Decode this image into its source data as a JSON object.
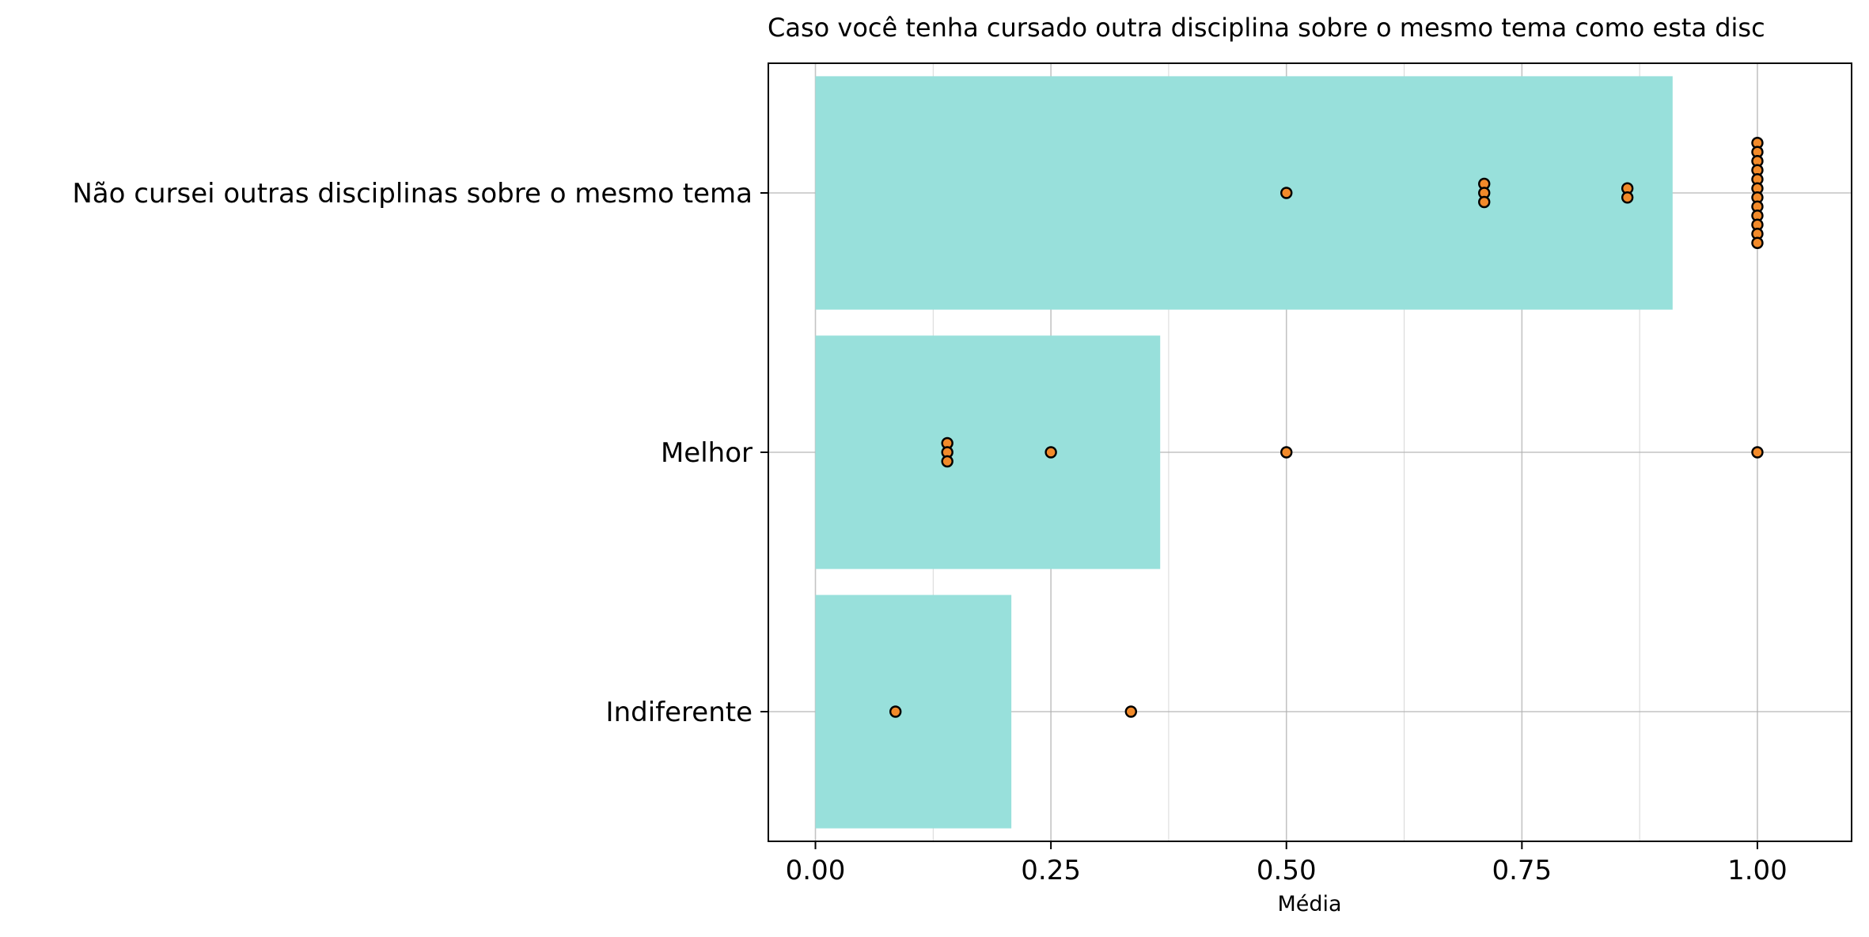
{
  "chart_data": {
    "type": "bar",
    "orientation": "horizontal",
    "title": "Caso você tenha cursado outra disciplina sobre o mesmo tema  como esta disc",
    "xlabel": "Média",
    "ylabel": "",
    "xlim": [
      -0.05,
      1.1
    ],
    "x_ticks": [
      0.0,
      0.25,
      0.5,
      0.75,
      1.0
    ],
    "x_tick_labels": [
      "0.00",
      "0.25",
      "0.50",
      "0.75",
      "1.00"
    ],
    "grid": true,
    "categories": [
      "Não cursei outras disciplinas sobre o mesmo tema",
      "Melhor",
      "Indiferente"
    ],
    "values": [
      0.91,
      0.366,
      0.208
    ],
    "points": [
      [
        0.5,
        0.71,
        0.71,
        0.71,
        0.862,
        0.862,
        1.0,
        1.0,
        1.0,
        1.0,
        1.0,
        1.0,
        1.0,
        1.0,
        1.0,
        1.0,
        1.0,
        1.0
      ],
      [
        0.14,
        0.14,
        0.14,
        0.25,
        0.5,
        1.0
      ],
      [
        0.085,
        0.335
      ]
    ],
    "colors": {
      "bar": "#98e0db",
      "point_fill": "#f28a2a",
      "point_edge": "#000000",
      "grid": "#b0b0b0",
      "axis": "#000000"
    }
  }
}
